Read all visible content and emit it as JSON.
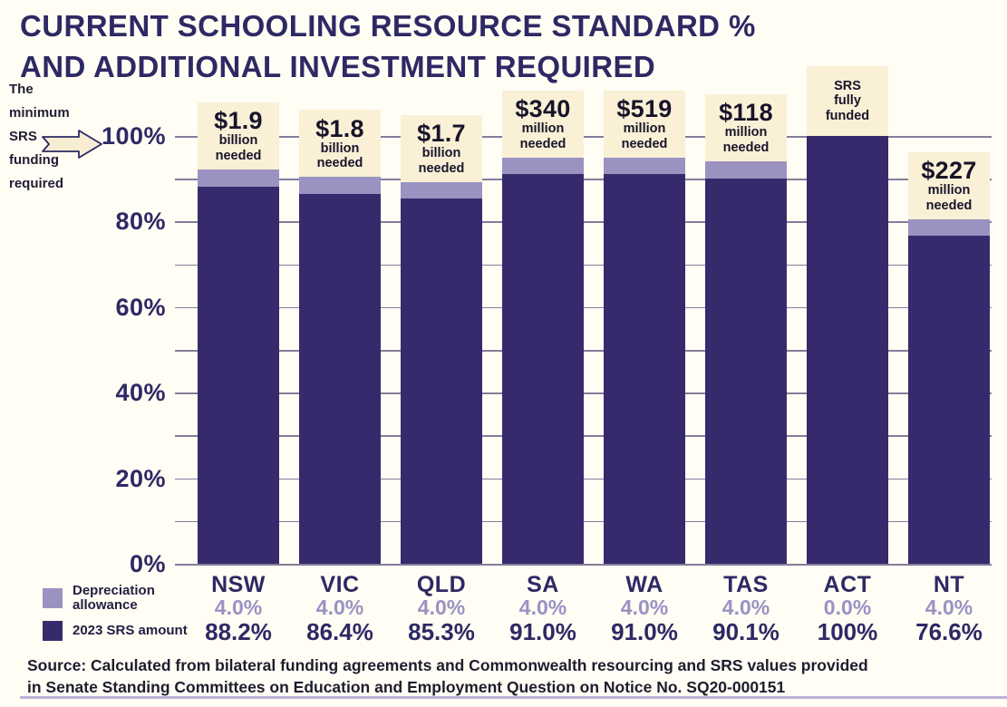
{
  "title": {
    "line1": "CURRENT SCHOOLING RESOURCE STANDARD %",
    "line2": "AND ADDITIONAL INVESTMENT REQUIRED"
  },
  "axis_note": {
    "lines": [
      "The",
      "minimum",
      "SRS",
      "funding",
      "required"
    ]
  },
  "colors": {
    "background": "#FFFDF4",
    "srs_bar": "#372A6C",
    "depreciation_bar": "#9A92C0",
    "annotation_box": "#FAF0D6",
    "dark_text": "#2E2964",
    "light_pct_text": "#9A92C4",
    "gridline": "#837D9B",
    "arrow_fill": "#F7EDD2"
  },
  "legend": [
    {
      "label": "Depreciation allowance",
      "color": "#9A92C0"
    },
    {
      "label": "2023 SRS amount",
      "color": "#372A6C"
    }
  ],
  "source": {
    "line1": "Source: Calculated from bilateral funding agreements and Commonwealth resourcing and SRS values provided",
    "line2": "in Senate Standing Committees on Education and Employment Question on Notice No. SQ20-000151"
  },
  "chart_data": {
    "type": "bar",
    "stacked": true,
    "title": "CURRENT SCHOOLING RESOURCE STANDARD % AND ADDITIONAL INVESTMENT REQUIRED",
    "categories": [
      "NSW",
      "VIC",
      "QLD",
      "SA",
      "WA",
      "TAS",
      "ACT",
      "NT"
    ],
    "series": [
      {
        "name": "2023 SRS amount",
        "color": "#372A6C",
        "values": [
          88.2,
          86.4,
          85.3,
          91.0,
          91.0,
          90.1,
          100,
          76.6
        ]
      },
      {
        "name": "Depreciation allowance",
        "color": "#9A92C0",
        "values": [
          4.0,
          4.0,
          4.0,
          4.0,
          4.0,
          4.0,
          0.0,
          4.0
        ]
      }
    ],
    "annotations": [
      {
        "big": "$1.9",
        "lines": [
          "billion",
          "needed"
        ]
      },
      {
        "big": "$1.8",
        "lines": [
          "billion",
          "needed"
        ]
      },
      {
        "big": "$1.7",
        "lines": [
          "billion",
          "needed"
        ]
      },
      {
        "big": "$340",
        "lines": [
          "million",
          "needed"
        ]
      },
      {
        "big": "$519",
        "lines": [
          "million",
          "needed"
        ]
      },
      {
        "big": "$118",
        "lines": [
          "million",
          "needed"
        ]
      },
      {
        "big": "",
        "lines": [
          "SRS",
          "fully",
          "funded"
        ]
      },
      {
        "big": "$227",
        "lines": [
          "million",
          "needed"
        ]
      }
    ],
    "columns": [
      {
        "state": "NSW",
        "dep": "4.0%",
        "srs": "88.2%"
      },
      {
        "state": "VIC",
        "dep": "4.0%",
        "srs": "86.4%"
      },
      {
        "state": "QLD",
        "dep": "4.0%",
        "srs": "85.3%"
      },
      {
        "state": "SA",
        "dep": "4.0%",
        "srs": "91.0%"
      },
      {
        "state": "WA",
        "dep": "4.0%",
        "srs": "91.0%"
      },
      {
        "state": "TAS",
        "dep": "4.0%",
        "srs": "90.1%"
      },
      {
        "state": "ACT",
        "dep": "0.0%",
        "srs": "100%"
      },
      {
        "state": "NT",
        "dep": "4.0%",
        "srs": "76.6%"
      }
    ],
    "y_ticks": [
      {
        "label": "100%",
        "value": 100
      },
      {
        "label": "80%",
        "value": 80
      },
      {
        "label": "60%",
        "value": 60
      },
      {
        "label": "40%",
        "value": 40
      },
      {
        "label": "20%",
        "value": 20
      },
      {
        "label": "0%",
        "value": 0
      }
    ],
    "ylim": [
      0,
      100
    ],
    "grid_step": 10,
    "legend_position": "bottom-left",
    "xlabel": "",
    "ylabel": "Current schooling resource standard %"
  }
}
